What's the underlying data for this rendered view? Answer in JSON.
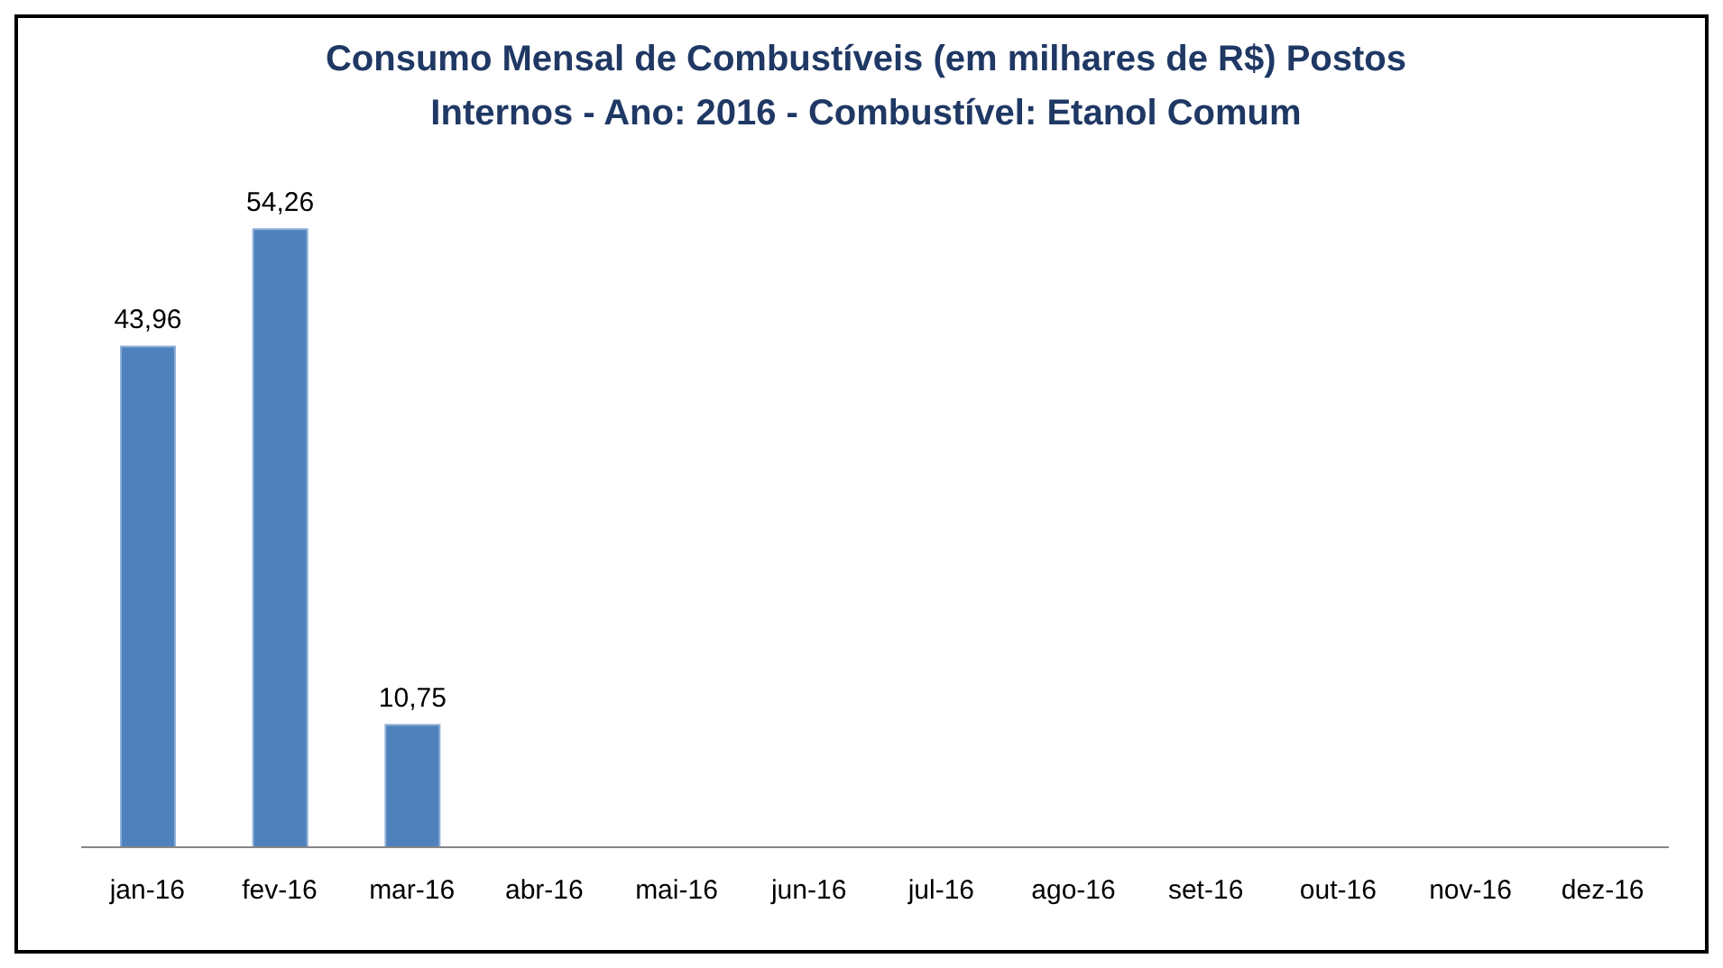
{
  "chart_data": {
    "type": "bar",
    "title": "Consumo Mensal de Combustíveis (em milhares de R$)  Postos Internos - Ano: 2016 - Combustível: Etanol Comum",
    "categories": [
      "jan-16",
      "fev-16",
      "mar-16",
      "abr-16",
      "mai-16",
      "jun-16",
      "jul-16",
      "ago-16",
      "set-16",
      "out-16",
      "nov-16",
      "dez-16"
    ],
    "values": [
      43.96,
      54.26,
      10.75,
      null,
      null,
      null,
      null,
      null,
      null,
      null,
      null,
      null
    ],
    "value_labels": [
      "43,96",
      "54,26",
      "10,75",
      null,
      null,
      null,
      null,
      null,
      null,
      null,
      null,
      null
    ],
    "color": "#4f81bd"
  }
}
